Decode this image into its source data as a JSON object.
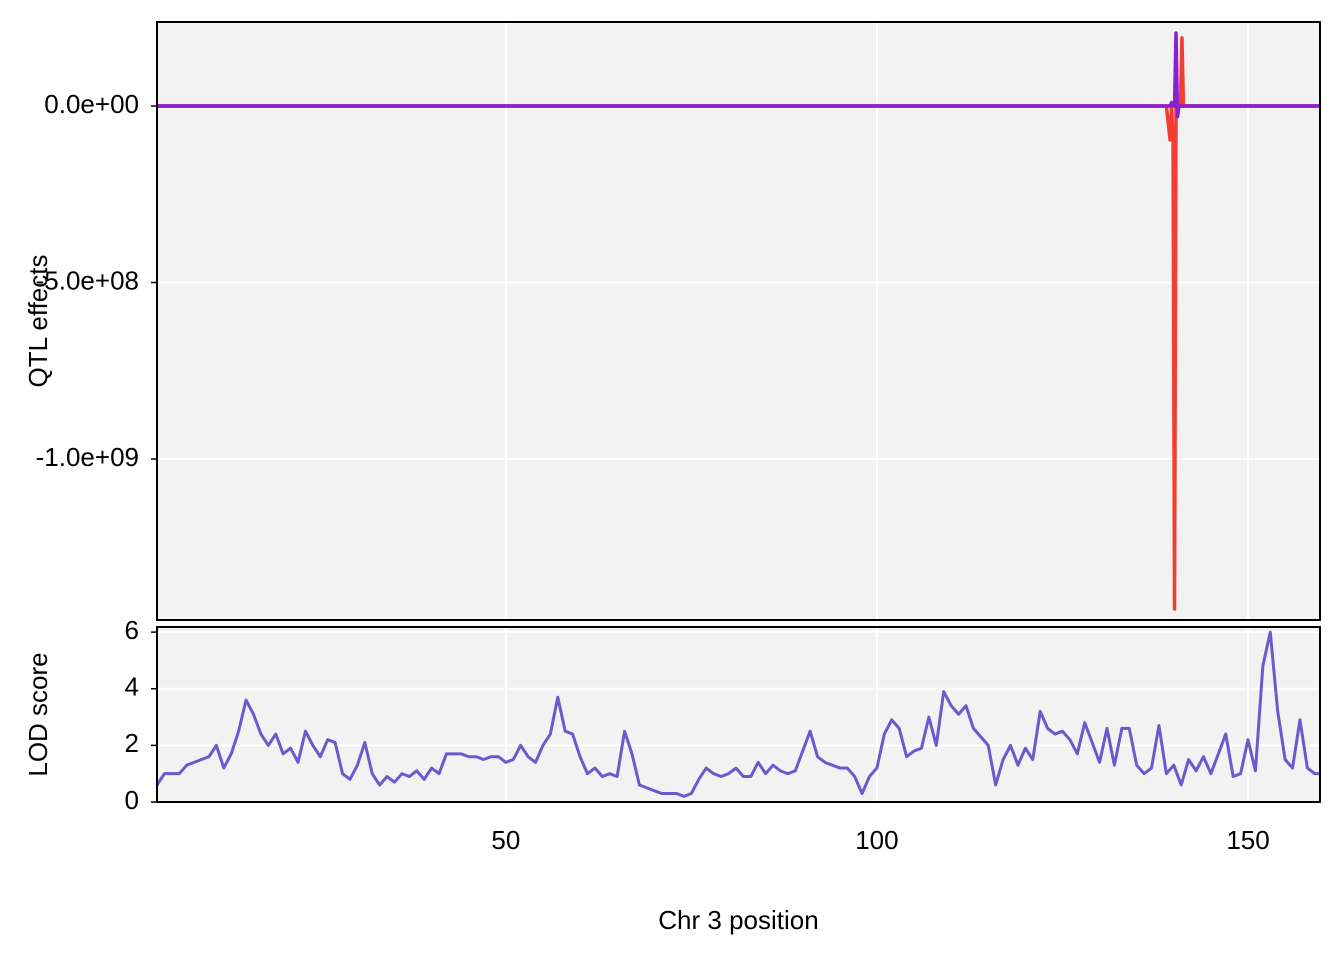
{
  "chart_data": [
    {
      "type": "line",
      "ylabel": "QTL effects",
      "x": [
        3,
        50,
        100,
        139,
        139.5,
        139.7,
        139.9,
        140.1,
        140.3,
        140.5,
        140.7,
        140.9,
        141.1,
        141.3,
        141.6,
        145,
        159.7
      ],
      "series": [
        {
          "color": "#aa1db2",
          "values": [
            0,
            0,
            0,
            0,
            0,
            0,
            0,
            0,
            0,
            0,
            0,
            0,
            0,
            0,
            0,
            0,
            0
          ]
        },
        {
          "color": "#f23d32",
          "values": [
            0,
            0,
            0,
            0,
            -96000000,
            0,
            -100000000,
            -1425000000,
            0,
            0,
            0,
            0,
            193000000,
            0,
            0,
            0,
            0
          ]
        },
        {
          "color": "#8c1fd0",
          "values": [
            0,
            0,
            0,
            0,
            0,
            10000000,
            0,
            0,
            207000000,
            -30000000,
            0,
            0,
            0,
            0,
            0,
            0,
            0
          ]
        }
      ],
      "xlim": [
        3,
        159.7
      ],
      "xticks": [
        50,
        100,
        150
      ],
      "ylim": [
        -1456000000,
        238000000
      ],
      "yticks": [
        {
          "value": 0,
          "label": "0.0e+00"
        },
        {
          "value": -500000000,
          "label": "-5.0e+08"
        },
        {
          "value": -1000000000,
          "label": "-1.0e+09"
        }
      ],
      "grid": true
    },
    {
      "type": "line",
      "ylabel": "LOD score",
      "xlabel": "Chr 3 position",
      "x": [
        3,
        4,
        5,
        6,
        7,
        8,
        9,
        10,
        11,
        12,
        13,
        14,
        15,
        16,
        17,
        18,
        19,
        20,
        21,
        22,
        23,
        24,
        25,
        26,
        27,
        28,
        29,
        30,
        31,
        32,
        33,
        34,
        35,
        36,
        37,
        38,
        39,
        40,
        41,
        42,
        43,
        44,
        45,
        46,
        47,
        48,
        49,
        50,
        51,
        52,
        53,
        54,
        55,
        56,
        57,
        58,
        59,
        60,
        61,
        62,
        63,
        64,
        65,
        66,
        67,
        68,
        69,
        70,
        71,
        72,
        73,
        74,
        75,
        76,
        77,
        78,
        79,
        80,
        81,
        82,
        83,
        84,
        85,
        86,
        87,
        88,
        89,
        90,
        91,
        92,
        93,
        94,
        95,
        96,
        97,
        98,
        99,
        100,
        101,
        102,
        103,
        104,
        105,
        106,
        107,
        108,
        109,
        110,
        111,
        112,
        113,
        114,
        115,
        116,
        117,
        118,
        119,
        120,
        121,
        122,
        123,
        124,
        125,
        126,
        127,
        128,
        129,
        130,
        131,
        132,
        133,
        134,
        135,
        136,
        137,
        138,
        139,
        140,
        141,
        142,
        143,
        144,
        145,
        146,
        147,
        148,
        149,
        150,
        151,
        152,
        153,
        154,
        155,
        156,
        157,
        158,
        159,
        159.7
      ],
      "series": [
        {
          "color": "#6a5acd",
          "values": [
            0.6,
            1.0,
            1.0,
            1.0,
            1.3,
            1.4,
            1.5,
            1.6,
            2.0,
            1.2,
            1.7,
            2.5,
            3.6,
            3.1,
            2.4,
            2.0,
            2.4,
            1.7,
            1.9,
            1.4,
            2.5,
            2.0,
            1.6,
            2.2,
            2.1,
            1.0,
            0.8,
            1.3,
            2.1,
            1.0,
            0.6,
            0.9,
            0.7,
            1.0,
            0.9,
            1.1,
            0.8,
            1.2,
            1.0,
            1.7,
            1.7,
            1.7,
            1.6,
            1.6,
            1.5,
            1.6,
            1.6,
            1.4,
            1.5,
            2.0,
            1.6,
            1.4,
            2.0,
            2.4,
            3.7,
            2.5,
            2.4,
            1.6,
            1.0,
            1.2,
            0.9,
            1.0,
            0.9,
            2.5,
            1.7,
            0.6,
            0.5,
            0.4,
            0.3,
            0.3,
            0.3,
            0.2,
            0.3,
            0.8,
            1.2,
            1.0,
            0.9,
            1.0,
            1.2,
            0.9,
            0.9,
            1.4,
            1.0,
            1.3,
            1.1,
            1.0,
            1.1,
            1.8,
            2.5,
            1.6,
            1.4,
            1.3,
            1.2,
            1.2,
            0.9,
            0.3,
            0.9,
            1.2,
            2.4,
            2.9,
            2.6,
            1.6,
            1.8,
            1.9,
            3.0,
            2.0,
            3.9,
            3.4,
            3.1,
            3.4,
            2.6,
            2.3,
            2.0,
            0.6,
            1.5,
            2.0,
            1.3,
            1.9,
            1.5,
            3.2,
            2.6,
            2.4,
            2.5,
            2.2,
            1.7,
            2.8,
            2.1,
            1.4,
            2.6,
            1.3,
            2.6,
            2.6,
            1.3,
            1.0,
            1.2,
            2.7,
            1.0,
            1.3,
            0.6,
            1.5,
            1.1,
            1.6,
            1.0,
            1.7,
            2.4,
            0.9,
            1.0,
            2.2,
            1.1,
            4.8,
            6.0,
            3.2,
            1.5,
            1.2,
            2.9,
            1.2,
            1.0,
            1.0
          ]
        }
      ],
      "xlim": [
        3,
        159.7
      ],
      "xticks": [
        50,
        100,
        150
      ],
      "ylim": [
        0,
        6.18
      ],
      "yticks": [
        0,
        2,
        4,
        6
      ],
      "grid": true
    }
  ]
}
